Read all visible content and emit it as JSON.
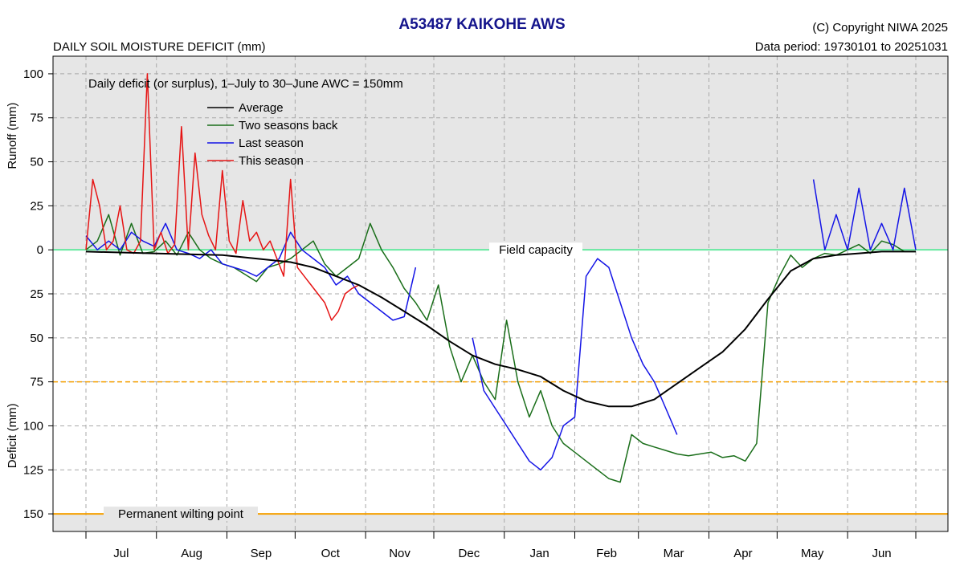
{
  "header": {
    "title": "A53487  KAIKOHE AWS",
    "subtitle": "DAILY SOIL MOISTURE DEFICIT (mm)",
    "copyright": "(C) Copyright NIWA  2025",
    "data_period": "Data period:  19730101  to  20251031"
  },
  "colors": {
    "average": "#000000",
    "two_seasons_back": "#1a6e1a",
    "last_season": "#1414e6",
    "this_season": "#e61414",
    "field_capacity": "#66e8a0",
    "threshold": "#f5a000",
    "wilting": "#f5a000",
    "surplus_bg": "#e6e6e6",
    "deficit_bg": "#ffffff"
  },
  "chart_data": {
    "type": "line",
    "annotation": "Daily deficit (or surplus), 1–July to 30–June   AWC = 150mm",
    "runoff_label": "Runoff (mm)",
    "deficit_label": "Deficit (mm)",
    "field_capacity_label": "Field capacity",
    "wilting_label": "Permanent wilting point",
    "threshold_value": 75,
    "wilting_value": 150,
    "ylim": [
      -110,
      160
    ],
    "y_ticks": [
      {
        "value": -100,
        "label": "100"
      },
      {
        "value": -75,
        "label": "75"
      },
      {
        "value": -50,
        "label": "50"
      },
      {
        "value": -25,
        "label": "25"
      },
      {
        "value": 0,
        "label": "0"
      },
      {
        "value": 25,
        "label": "25"
      },
      {
        "value": 50,
        "label": "50"
      },
      {
        "value": 75,
        "label": "75"
      },
      {
        "value": 100,
        "label": "100"
      },
      {
        "value": 125,
        "label": "125"
      },
      {
        "value": 150,
        "label": "150"
      }
    ],
    "months": [
      "Jul",
      "Aug",
      "Sep",
      "Oct",
      "Nov",
      "Dec",
      "Jan",
      "Feb",
      "Mar",
      "Apr",
      "May",
      "Jun"
    ],
    "grid": true,
    "series": [
      {
        "name": "Average",
        "key": "average",
        "x": [
          0,
          30,
          60,
          75,
          90,
          100,
          110,
          120,
          130,
          140,
          150,
          160,
          170,
          180,
          190,
          200,
          210,
          220,
          230,
          240,
          250,
          260,
          270,
          280,
          290,
          300,
          310,
          320,
          330,
          340,
          350,
          365
        ],
        "y": [
          1,
          2,
          3,
          5,
          7,
          10,
          15,
          20,
          27,
          35,
          43,
          52,
          60,
          65,
          68,
          72,
          80,
          86,
          89,
          89,
          85,
          76,
          67,
          58,
          45,
          28,
          12,
          5,
          3,
          2,
          1,
          1
        ]
      },
      {
        "name": "Two seasons back",
        "key": "two_seasons_back",
        "x": [
          0,
          5,
          10,
          15,
          20,
          25,
          30,
          35,
          40,
          45,
          50,
          55,
          60,
          65,
          70,
          75,
          80,
          85,
          90,
          95,
          100,
          105,
          110,
          115,
          120,
          125,
          130,
          135,
          140,
          145,
          150,
          155,
          160,
          165,
          170,
          175,
          180,
          185,
          190,
          195,
          200,
          205,
          210,
          215,
          220,
          225,
          230,
          235,
          240,
          245,
          250,
          255,
          260,
          265,
          270,
          275,
          280,
          285,
          290,
          295,
          300,
          305,
          310,
          315,
          320,
          325,
          330,
          335,
          340,
          345,
          350,
          355,
          360,
          365
        ],
        "y": [
          0,
          -5,
          -20,
          3,
          -15,
          2,
          1,
          -5,
          3,
          -10,
          0,
          5,
          8,
          10,
          14,
          18,
          10,
          8,
          5,
          0,
          -5,
          8,
          15,
          10,
          5,
          -15,
          0,
          10,
          22,
          30,
          40,
          20,
          55,
          75,
          60,
          75,
          85,
          40,
          75,
          95,
          80,
          100,
          110,
          115,
          120,
          125,
          130,
          132,
          105,
          110,
          112,
          114,
          116,
          117,
          116,
          115,
          118,
          117,
          120,
          110,
          30,
          15,
          3,
          10,
          5,
          2,
          3,
          0,
          -3,
          2,
          -5,
          -3,
          1,
          1
        ]
      },
      {
        "name": "Last season",
        "key": "last_season",
        "x": [
          0,
          5,
          10,
          15,
          20,
          25,
          30,
          35,
          40,
          45,
          50,
          55,
          60,
          65,
          70,
          75,
          80,
          85,
          90,
          95,
          100,
          105,
          110,
          115,
          120,
          125,
          130,
          135,
          140,
          145,
          150,
          155,
          160,
          165,
          170,
          175,
          180,
          185,
          190,
          195,
          200,
          205,
          210,
          215,
          220,
          225,
          230,
          235,
          240,
          245,
          250,
          255,
          260,
          265,
          270,
          275,
          280,
          285,
          290,
          295,
          300,
          305,
          310,
          315,
          320,
          325,
          330,
          335,
          340,
          345,
          350,
          355,
          360,
          365
        ],
        "y": [
          -8,
          0,
          -5,
          0,
          -10,
          -5,
          -2,
          -15,
          0,
          2,
          5,
          0,
          8,
          10,
          12,
          15,
          10,
          5,
          -10,
          0,
          5,
          10,
          20,
          15,
          25,
          30,
          35,
          40,
          38,
          10,
          null,
          null,
          null,
          null,
          50,
          80,
          90,
          100,
          110,
          120,
          125,
          118,
          100,
          95,
          15,
          5,
          10,
          30,
          50,
          65,
          75,
          90,
          105,
          null,
          null,
          null,
          null,
          null,
          null,
          null,
          null,
          null,
          null,
          null,
          -40,
          0,
          -20,
          0,
          -35,
          0,
          -15,
          0,
          -35,
          0
        ]
      },
      {
        "name": "This season",
        "key": "this_season",
        "x": [
          0,
          3,
          6,
          9,
          12,
          15,
          18,
          21,
          24,
          27,
          30,
          33,
          36,
          39,
          42,
          45,
          48,
          51,
          54,
          57,
          60,
          63,
          66,
          69,
          72,
          75,
          78,
          81,
          84,
          87,
          90,
          93,
          96,
          99,
          102,
          105,
          108,
          111,
          114,
          117,
          120
        ],
        "y": [
          0,
          -40,
          -25,
          0,
          -5,
          -25,
          0,
          2,
          -5,
          -100,
          0,
          -10,
          2,
          -3,
          -70,
          0,
          -55,
          -20,
          -8,
          0,
          -45,
          -5,
          2,
          -28,
          -5,
          -10,
          0,
          -5,
          5,
          15,
          -40,
          10,
          15,
          20,
          25,
          30,
          40,
          35,
          25,
          22,
          20
        ]
      }
    ]
  }
}
